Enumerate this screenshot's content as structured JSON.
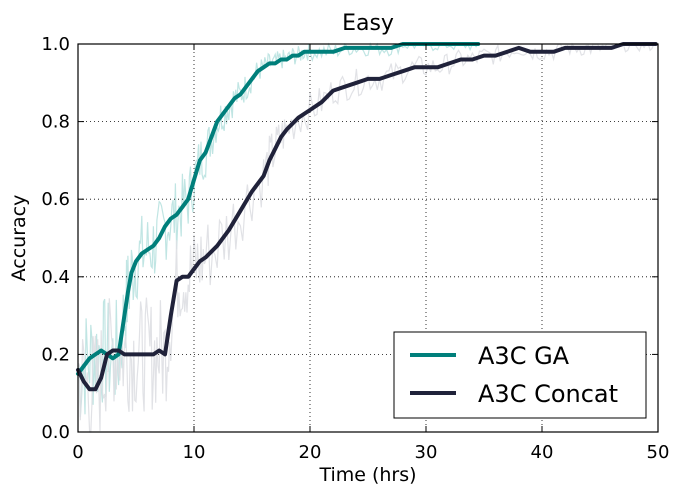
{
  "chart_data": {
    "type": "line",
    "title": "Easy",
    "xlabel": "Time (hrs)",
    "ylabel": "Accuracy",
    "xlim": [
      0,
      50
    ],
    "ylim": [
      0.0,
      1.0
    ],
    "xticks": [
      0,
      10,
      20,
      30,
      40,
      50
    ],
    "xtick_labels": [
      "0",
      "10",
      "20",
      "30",
      "40",
      "50"
    ],
    "yticks": [
      0.0,
      0.2,
      0.4,
      0.6,
      0.8,
      1.0
    ],
    "ytick_labels": [
      "0.0",
      "0.2",
      "0.4",
      "0.6",
      "0.8",
      "1.0"
    ],
    "grid": true,
    "legend_position": "lower-right",
    "series": [
      {
        "name": "A3C GA",
        "color": "#007f7b",
        "band_color": "#b9e2e0",
        "x": [
          0,
          0.5,
          1,
          1.5,
          2,
          2.5,
          3,
          3.5,
          4,
          4.3,
          4.6,
          5,
          5.5,
          6,
          6.5,
          7,
          7.5,
          8,
          8.5,
          9,
          9.5,
          10,
          10.5,
          11,
          11.5,
          12,
          12.5,
          13,
          13.5,
          14,
          14.5,
          15,
          15.5,
          16,
          16.5,
          17,
          17.5,
          18,
          18.5,
          19,
          19.5,
          20,
          21,
          22,
          23,
          24,
          25,
          26,
          27,
          28,
          29,
          30,
          31,
          32,
          33,
          34,
          34.5
        ],
        "values": [
          0.15,
          0.17,
          0.19,
          0.2,
          0.21,
          0.2,
          0.19,
          0.2,
          0.3,
          0.36,
          0.41,
          0.44,
          0.46,
          0.47,
          0.48,
          0.5,
          0.53,
          0.55,
          0.56,
          0.58,
          0.6,
          0.65,
          0.7,
          0.72,
          0.76,
          0.8,
          0.82,
          0.84,
          0.86,
          0.87,
          0.89,
          0.91,
          0.93,
          0.94,
          0.95,
          0.95,
          0.96,
          0.96,
          0.97,
          0.97,
          0.98,
          0.98,
          0.98,
          0.98,
          0.99,
          0.99,
          0.99,
          0.99,
          0.99,
          1.0,
          1.0,
          1.0,
          1.0,
          1.0,
          1.0,
          1.0,
          1.0
        ]
      },
      {
        "name": "A3C Concat",
        "color": "#20223a",
        "band_color": "#dedfe3",
        "x": [
          0,
          0.5,
          1,
          1.5,
          2,
          2.5,
          3,
          3.5,
          4,
          4.5,
          5,
          5.5,
          6,
          6.5,
          7,
          7.5,
          8,
          8.5,
          9,
          9.5,
          10,
          10.5,
          11,
          12,
          13,
          14,
          15,
          16,
          16.5,
          17,
          17.5,
          18,
          19,
          20,
          21,
          22,
          23,
          24,
          25,
          26,
          27,
          28,
          29,
          30,
          31,
          32,
          33,
          34,
          35,
          36,
          37,
          38,
          39,
          40,
          41,
          42,
          43,
          44,
          45,
          46,
          47,
          48,
          49,
          49.8
        ],
        "values": [
          0.16,
          0.13,
          0.11,
          0.11,
          0.14,
          0.2,
          0.21,
          0.21,
          0.2,
          0.2,
          0.2,
          0.2,
          0.2,
          0.2,
          0.21,
          0.2,
          0.3,
          0.39,
          0.4,
          0.4,
          0.42,
          0.44,
          0.45,
          0.48,
          0.52,
          0.57,
          0.62,
          0.66,
          0.7,
          0.73,
          0.76,
          0.78,
          0.81,
          0.83,
          0.85,
          0.88,
          0.89,
          0.9,
          0.91,
          0.91,
          0.92,
          0.93,
          0.94,
          0.94,
          0.94,
          0.95,
          0.96,
          0.96,
          0.97,
          0.97,
          0.98,
          0.99,
          0.98,
          0.98,
          0.98,
          0.99,
          0.99,
          0.99,
          0.99,
          0.99,
          1.0,
          1.0,
          1.0,
          1.0
        ]
      }
    ]
  }
}
